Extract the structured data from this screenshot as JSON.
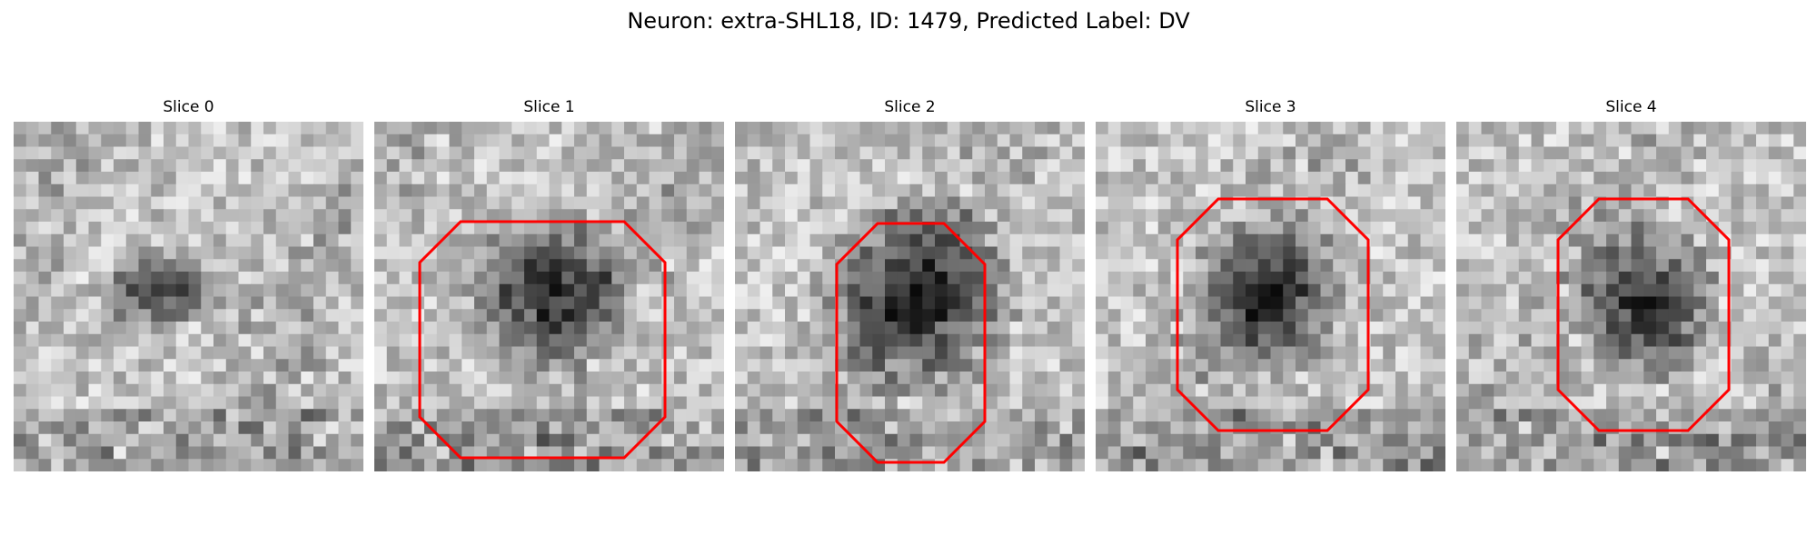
{
  "figure": {
    "title": "Neuron: extra-SHL18, ID: 1479, Predicted Label: DV"
  },
  "panels": [
    {
      "title": "Slice 0",
      "has_contour": false,
      "contour_color": "#ff0000",
      "image_description": "grayscale microscopy slice with a faint dark blob near center"
    },
    {
      "title": "Slice 1",
      "has_contour": true,
      "contour_color": "#ff0000",
      "image_description": "grayscale microscopy slice with dark oval cell body outlined in red octagon"
    },
    {
      "title": "Slice 2",
      "has_contour": true,
      "contour_color": "#ff0000",
      "image_description": "grayscale microscopy slice with dark round cell body outlined in red octagon"
    },
    {
      "title": "Slice 3",
      "has_contour": true,
      "contour_color": "#ff0000",
      "image_description": "grayscale microscopy slice with dark cell body outlined in red octagon"
    },
    {
      "title": "Slice 4",
      "has_contour": true,
      "contour_color": "#ff0000",
      "image_description": "grayscale microscopy slice with dark cell body outlined in red octagon"
    }
  ]
}
